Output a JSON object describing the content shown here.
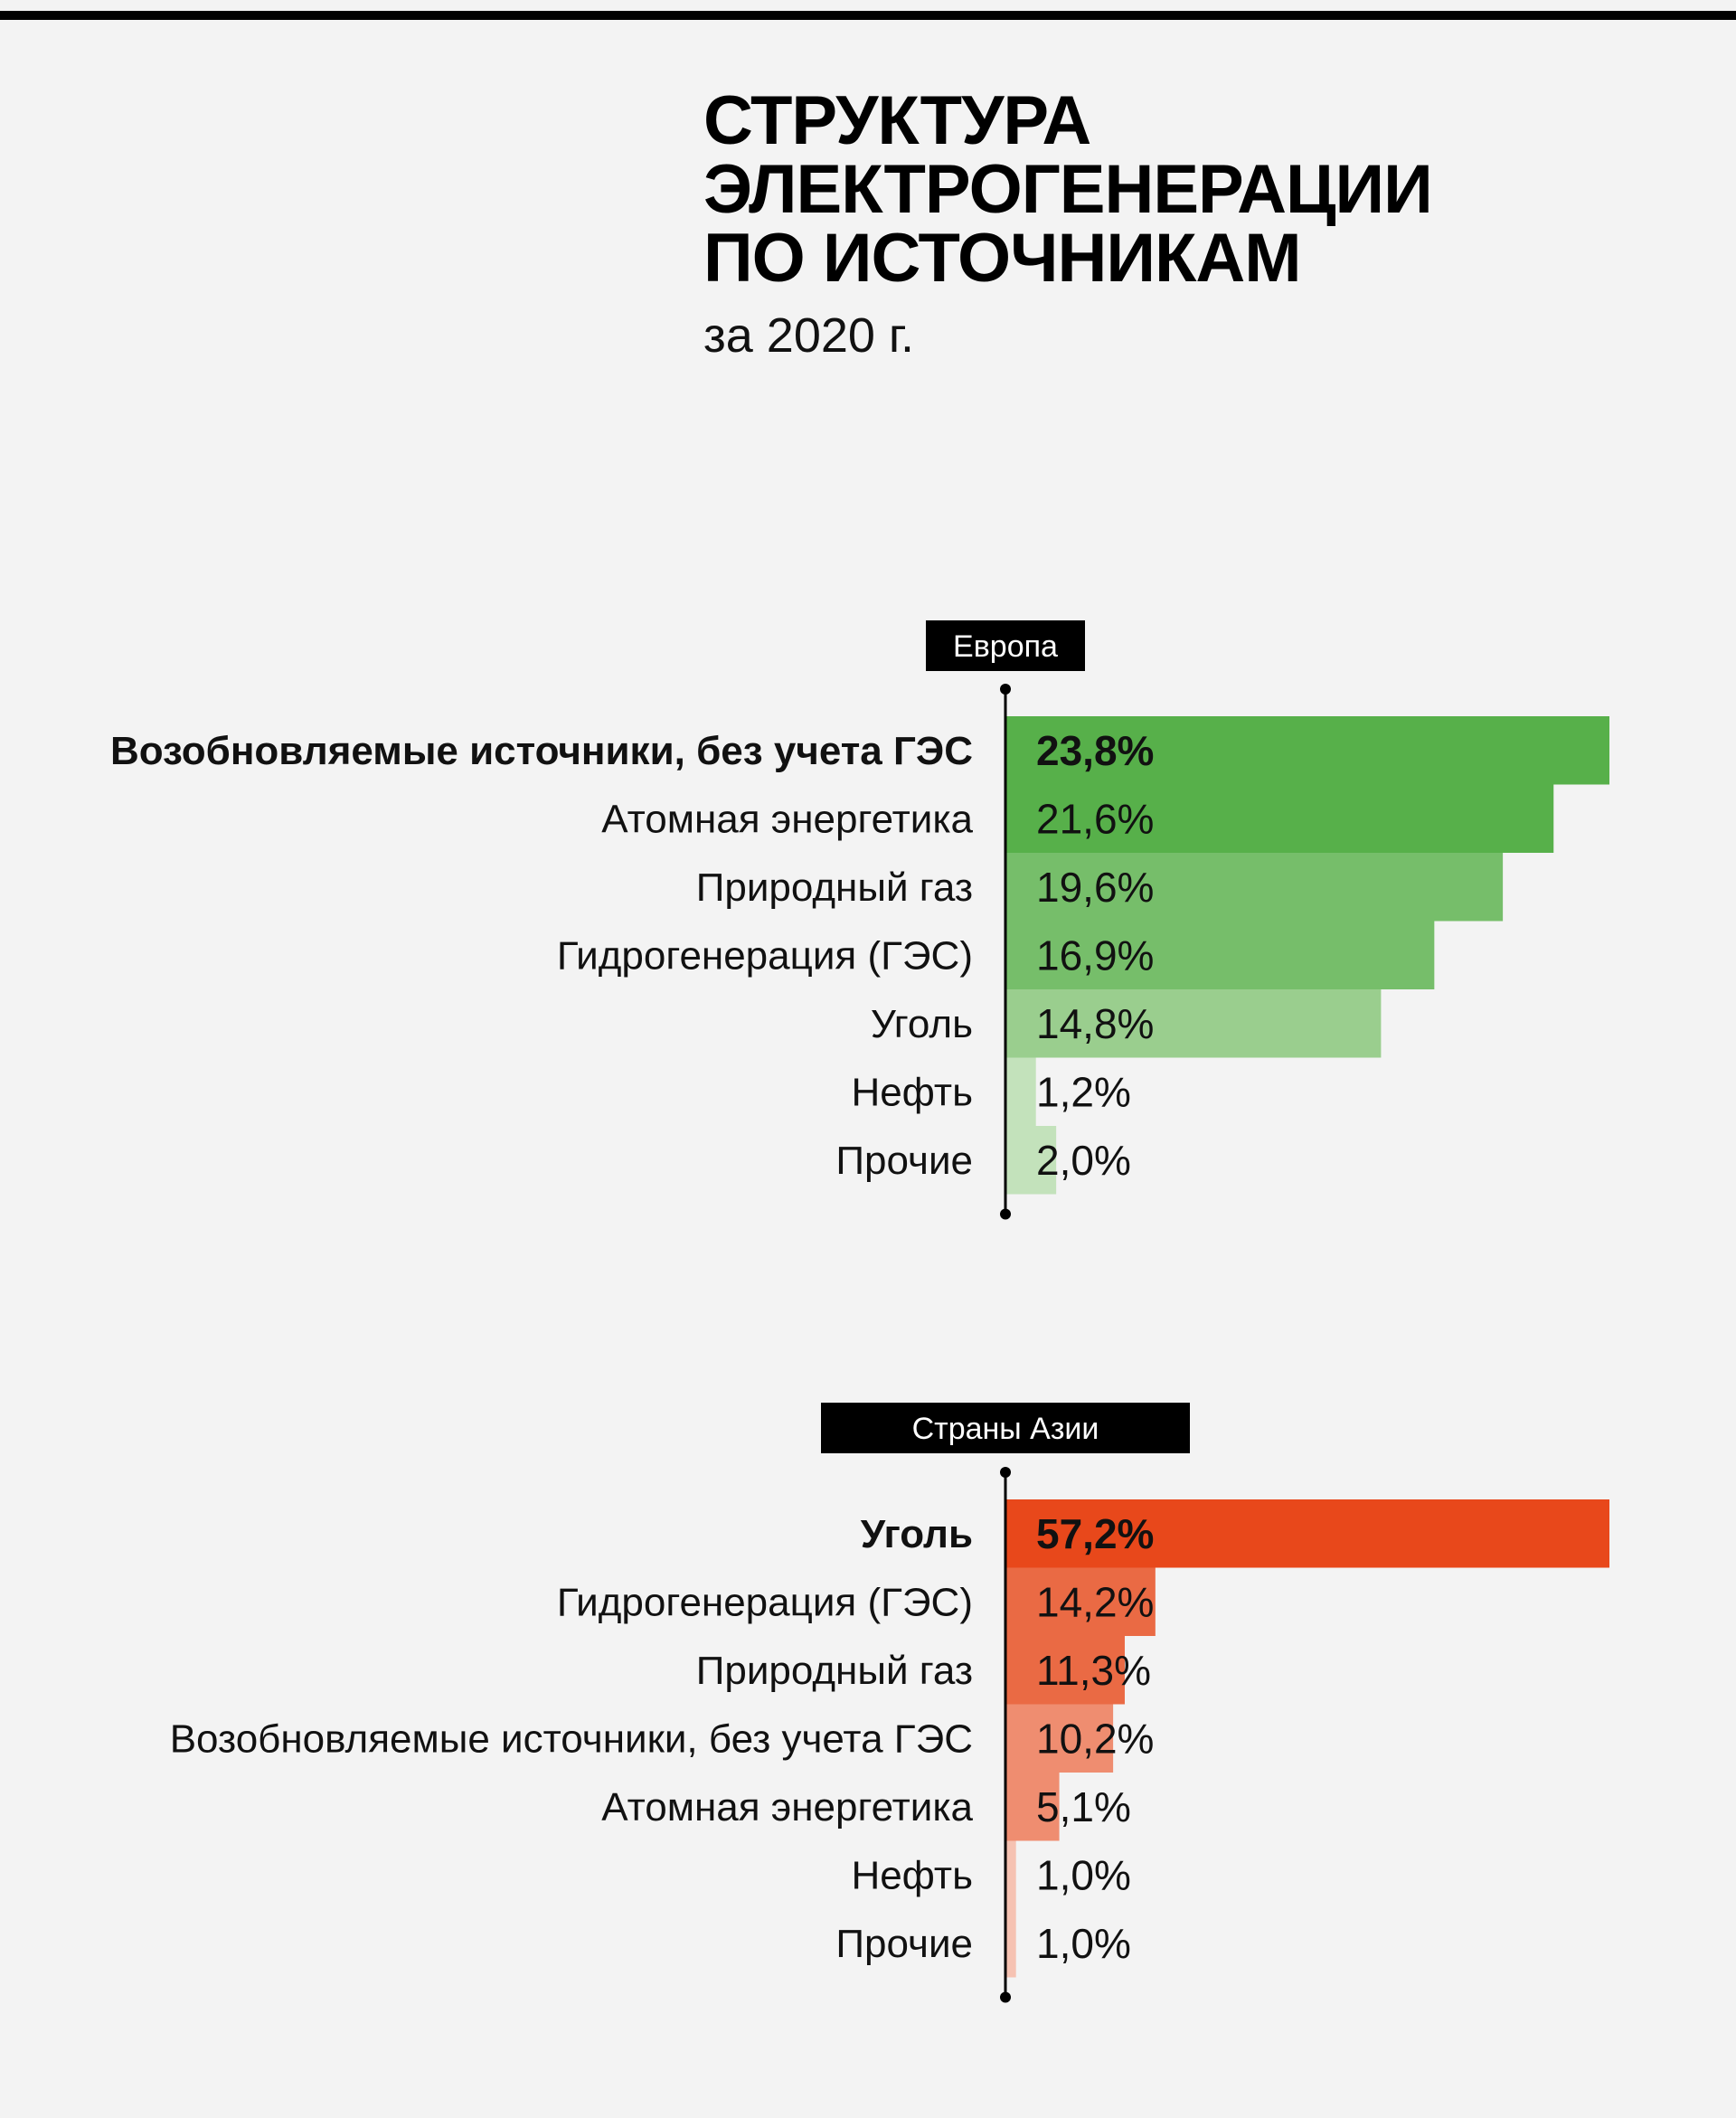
{
  "title_lines": [
    "СТРУКТУРА",
    "ЭЛЕКТРОГЕНЕРАЦИИ",
    "ПО ИСТОЧНИКАМ"
  ],
  "subtitle": "за 2020 г.",
  "chart_data": [
    {
      "type": "bar",
      "panel_title": "Европа",
      "unit": "%",
      "categories": [
        "Возобновляемые источники, без учета ГЭС",
        "Атомная энергетика",
        "Природный газ",
        "Гидрогенерация (ГЭС)",
        "Уголь",
        "Нефть",
        "Прочие"
      ],
      "values": [
        23.8,
        21.6,
        19.6,
        16.9,
        14.8,
        1.2,
        2.0
      ],
      "value_labels": [
        "23,8%",
        "21,6%",
        "19,6%",
        "16,9%",
        "14,8%",
        "1,2%",
        "2,0%"
      ],
      "bar_colors": [
        "#57b04a",
        "#57b04a",
        "#76be6a",
        "#76be6a",
        "#9ace8e",
        "#c3e2bb",
        "#c3e2bb"
      ],
      "highlight_index": 0
    },
    {
      "type": "bar",
      "panel_title": "Страны Азии",
      "unit": "%",
      "categories": [
        "Уголь",
        "Гидрогенерация (ГЭС)",
        "Природный газ",
        "Возобновляемые источники, без учета ГЭС",
        "Атомная энергетика",
        "Нефть",
        "Прочие"
      ],
      "values": [
        57.2,
        14.2,
        11.3,
        10.2,
        5.1,
        1.0,
        1.0
      ],
      "value_labels": [
        "57,2%",
        "14,2%",
        "11,3%",
        "10,2%",
        "5,1%",
        "1,0%",
        "1,0%"
      ],
      "bar_colors": [
        "#e8481b",
        "#ea6a44",
        "#ea6a44",
        "#ef8d70",
        "#ef8d70",
        "#f6c2b2",
        "#f6c2b2"
      ],
      "highlight_index": 0
    }
  ]
}
